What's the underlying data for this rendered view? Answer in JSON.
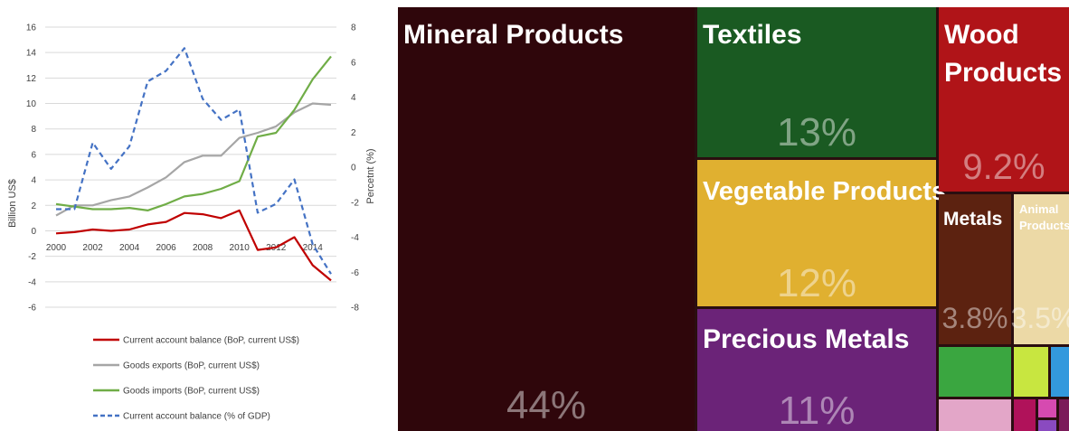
{
  "chart_data": [
    {
      "type": "line",
      "title": "",
      "x": [
        2000,
        2001,
        2002,
        2003,
        2004,
        2005,
        2006,
        2007,
        2008,
        2009,
        2010,
        2011,
        2012,
        2013,
        2014,
        2015
      ],
      "xticks": [
        "2000",
        "2002",
        "2004",
        "2006",
        "2008",
        "2010",
        "2012",
        "2014"
      ],
      "y_left_label": "Billion US$",
      "y_left_ticks": [
        "16",
        "14",
        "12",
        "10",
        "8",
        "6",
        "4",
        "2",
        "0",
        "-2",
        "-4",
        "-6"
      ],
      "y_left_lim": [
        -6,
        16
      ],
      "y_right_label": "Percetnt (%)",
      "y_right_ticks": [
        "8",
        "6",
        "4",
        "2",
        "0",
        "-2",
        "-4",
        "-6",
        "-8"
      ],
      "y_right_lim": [
        -8,
        8
      ],
      "grid": true,
      "legend_position": "bottom",
      "series": [
        {
          "name": "Current account balance (BoP, current US$)",
          "axis": "left",
          "color": "#c00000",
          "dash": "solid",
          "values": [
            -0.2,
            -0.1,
            0.1,
            0.0,
            0.1,
            0.5,
            0.7,
            1.4,
            1.3,
            1.0,
            1.6,
            -1.5,
            -1.3,
            -0.5,
            -2.7,
            -3.9
          ]
        },
        {
          "name": "Goods exports (BoP, current US$)",
          "axis": "left",
          "color": "#a6a6a6",
          "dash": "solid",
          "values": [
            1.2,
            2.0,
            2.0,
            2.4,
            2.7,
            3.4,
            4.2,
            5.4,
            5.9,
            5.9,
            7.3,
            7.7,
            8.2,
            9.3,
            10.0,
            9.9
          ]
        },
        {
          "name": "Goods imports (BoP, current US$)",
          "axis": "left",
          "color": "#70ad47",
          "dash": "solid",
          "values": [
            2.1,
            1.9,
            1.7,
            1.7,
            1.8,
            1.6,
            2.1,
            2.7,
            2.9,
            3.3,
            3.9,
            7.4,
            7.7,
            9.5,
            11.9,
            13.7
          ]
        },
        {
          "name": "Current account balance (% of GDP)",
          "axis": "right",
          "color": "#4472c4",
          "dash": "dashed",
          "values": [
            -2.4,
            -2.4,
            1.4,
            -0.1,
            1.2,
            4.9,
            5.5,
            6.8,
            3.9,
            2.7,
            3.3,
            -2.6,
            -2.1,
            -0.7,
            -4.4,
            -6.1
          ]
        }
      ]
    },
    {
      "type": "treemap",
      "title": "",
      "items": [
        {
          "label": "Mineral Products",
          "pct_text": "44%",
          "value": 44,
          "color": "#2f060b"
        },
        {
          "label": "Textiles",
          "pct_text": "13%",
          "value": 13,
          "color": "#1a5a22"
        },
        {
          "label": "Vegetable Products",
          "pct_text": "12%",
          "value": 12,
          "color": "#e0b030"
        },
        {
          "label": "Precious Metals",
          "pct_text": "11%",
          "value": 11,
          "color": "#6b2378"
        },
        {
          "label": "Wood Products",
          "pct_text": "9.2%",
          "value": 9.2,
          "color": "#b01418"
        },
        {
          "label": "Metals",
          "pct_text": "3.8%",
          "value": 3.8,
          "color": "#5c2210"
        },
        {
          "label": "Animal Products",
          "pct_text": "3.5%",
          "value": 3.5,
          "color": "#ecd9a6"
        }
      ]
    }
  ]
}
